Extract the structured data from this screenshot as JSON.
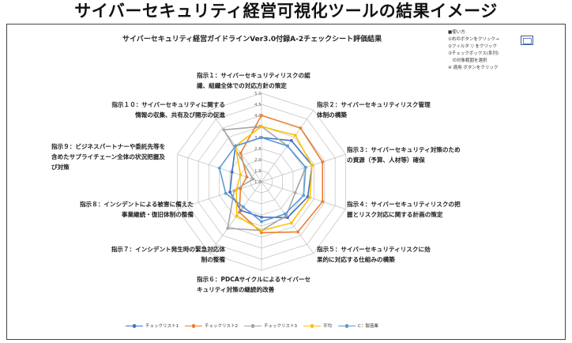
{
  "page_heading": "サイバーセキュリティ経営可視化ツールの結果イメージ",
  "chart_data": {
    "type": "radar",
    "title": "サイバーセキュリティ経営ガイドラインVer3.0付録A-2チェックシート評価結果",
    "axes": [
      [
        "指示１：サイバーセキュリティリスクの認",
        "識、組織全体での対応方針の策定"
      ],
      [
        "指示２：サイバーセキュリティリスク管理",
        "体制の構築"
      ],
      [
        "指示３：サイバーセキュリティ対策のため",
        "の資源（予算、人材等）確保"
      ],
      [
        "指示４：サイバーセキュリティリスクの把",
        "握とリスク対応に関する計画の策定"
      ],
      [
        "指示５：サイバーセキュリティリスクに効",
        "果的に対応する仕組みの構築"
      ],
      [
        "指示６：PDCAサイクルによるサイバーセ",
        "キュリティ対策の継続的改善"
      ],
      [
        "指示７：インシデント発生時の緊急対応体",
        "制の整備"
      ],
      [
        "指示８：インシデントによる被害に備えた",
        "事業継続・復旧体制の整備"
      ],
      [
        "指示９：ビジネスパートナーや委託先等を",
        "含めたサプライチェーン全体の状況把握及",
        "び対策"
      ],
      [
        "指示１０：サイバーセキュリティに関する",
        "情報の収集、共有及び開示の促進"
      ]
    ],
    "rlim": [
      1.0,
      5.0
    ],
    "ticks": [
      "1.0",
      "1.5",
      "2.0",
      "2.5",
      "3.0",
      "3.5",
      "4.0",
      "4.5",
      "5.0"
    ],
    "series": [
      {
        "name": "チェックリスト1",
        "color": "#4472c4",
        "values": [
          3.0,
          3.3,
          3.4,
          3.2,
          3.0,
          2.6,
          2.6,
          2.5,
          2.4,
          3.0
        ]
      },
      {
        "name": "チェックリスト2",
        "color": "#ed7d31",
        "values": [
          4.0,
          4.0,
          3.9,
          3.9,
          3.8,
          3.3,
          2.7,
          2.0,
          1.7,
          2.6
        ]
      },
      {
        "name": "チェックリスト3",
        "color": "#a5a5a5",
        "values": [
          3.5,
          3.0,
          3.1,
          2.6,
          2.9,
          3.2,
          3.6,
          2.3,
          1.4,
          3.9
        ]
      },
      {
        "name": "平均",
        "color": "#ffc000",
        "values": [
          3.5,
          3.6,
          3.4,
          3.3,
          3.3,
          3.2,
          2.9,
          2.2,
          2.0,
          3.0
        ]
      },
      {
        "name": "C：製造業",
        "color": "#5b9bd5",
        "values": [
          3.0,
          3.0,
          3.1,
          3.0,
          2.8,
          2.8,
          2.4,
          2.7,
          3.0,
          3.0
        ]
      }
    ],
    "grid": true,
    "legend_position": "bottom"
  },
  "howto": {
    "heading": "■使い方",
    "steps": [
      "①右のボタンをクリック→",
      "②フィルタ ▽ をクリック",
      "③チェックボックス(系列)",
      "　の対象範囲を選択",
      "④ 適用 ボタンをクリック"
    ]
  },
  "colors": {
    "grid": "#bfbfbf",
    "border": "#444444",
    "button": "#3a5ca8"
  }
}
